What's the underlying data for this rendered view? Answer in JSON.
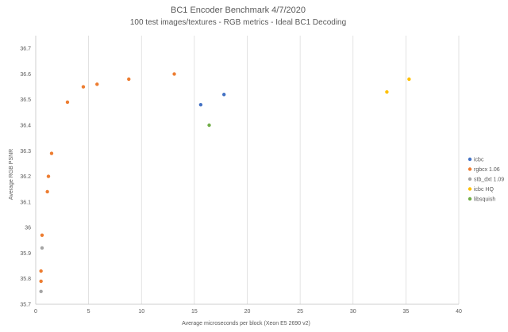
{
  "chart_data": {
    "type": "scatter",
    "title": "BC1 Encoder Benchmark 4/7/2020",
    "subtitle": "100 test images/textures - RGB metrics - Ideal BC1 Decoding",
    "xlabel": "Average microseconds per block (Xeon E5 2690 v2)",
    "ylabel": "Average RGB PSNR",
    "xlim": [
      0,
      40
    ],
    "ylim": [
      35.7,
      36.75
    ],
    "x_ticks": [
      "0",
      "5",
      "10",
      "15",
      "20",
      "25",
      "30",
      "35",
      "40"
    ],
    "y_ticks": [
      "35.7",
      "35.8",
      "35.9",
      "36",
      "36.1",
      "36.2",
      "36.3",
      "36.4",
      "36.5",
      "36.6",
      "36.7"
    ],
    "grid": "vertical",
    "legend_position": "right",
    "series": [
      {
        "name": "icbc",
        "color": "#4472c4",
        "points": [
          [
            15.6,
            36.48
          ],
          [
            17.8,
            36.52
          ]
        ]
      },
      {
        "name": "rgbcx 1.06",
        "color": "#ed7d31",
        "points": [
          [
            0.5,
            35.79
          ],
          [
            0.5,
            35.83
          ],
          [
            0.6,
            35.97
          ],
          [
            1.1,
            36.14
          ],
          [
            1.2,
            36.2
          ],
          [
            1.5,
            36.29
          ],
          [
            3.0,
            36.49
          ],
          [
            4.5,
            36.55
          ],
          [
            5.8,
            36.56
          ],
          [
            8.8,
            36.58
          ],
          [
            13.1,
            36.6
          ]
        ]
      },
      {
        "name": "stb_dxt 1.09",
        "color": "#a5a5a5",
        "points": [
          [
            0.5,
            35.75
          ],
          [
            0.6,
            35.92
          ]
        ]
      },
      {
        "name": "icbc HQ",
        "color": "#ffc000",
        "points": [
          [
            33.2,
            36.53
          ],
          [
            35.3,
            36.58
          ]
        ]
      },
      {
        "name": "libsquish",
        "color": "#70ad47",
        "points": [
          [
            16.4,
            36.4
          ]
        ]
      }
    ]
  }
}
